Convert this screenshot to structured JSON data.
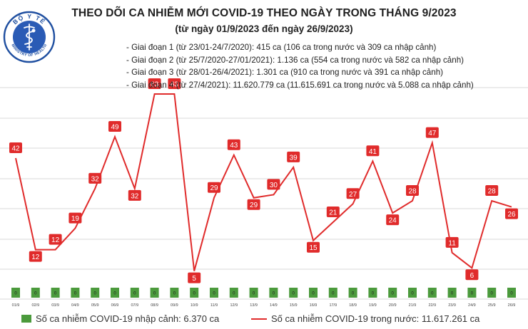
{
  "logo": {
    "top_text": "BỘ Y TẾ",
    "bottom_text": "MINISTRY OF HEALTH",
    "icon": "caduceus-icon"
  },
  "title": "THEO DÕI CA NHIỄM MỚI COVID-19 THEO NGÀY TRONG THÁNG 9/2023",
  "subtitle": "(từ ngày 01/9/2023 đến ngày 26/9/2023)",
  "phases": [
    "- Giai đoạn 1 (từ 23/01-24/7/2020): 415 ca (106 ca trong nước và 309 ca nhập cảnh)",
    "- Giai đoạn 2 (từ 25/7/2020-27/01/2021): 1.136 ca (554 ca trong nước và 582 ca nhập cảnh)",
    "- Giai đoạn 3 (từ 28/01-26/4/2021): 1.301 ca (910 ca trong nước và 391 ca nhập cảnh)",
    "- Giai đoạn 4 (từ 27/4/2021): 11.620.779 ca (11.615.691 ca trong nước và 5.088 ca nhập cảnh)"
  ],
  "legend": {
    "imported": "Số ca nhiễm COVID-19 nhập cảnh: 6.370 ca",
    "domestic": "Số ca nhiễm COVID-19 trong nước: 11.617.261 ca"
  },
  "colors": {
    "domestic_line": "#e02b2b",
    "imported_bar": "#4b9a3c",
    "grid": "#d9d9d9"
  },
  "chart_data": {
    "type": "line",
    "categories": [
      "01/9",
      "02/9",
      "03/9",
      "04/9",
      "05/9",
      "06/9",
      "07/9",
      "08/9",
      "09/9",
      "10/9",
      "11/9",
      "12/9",
      "13/9",
      "14/9",
      "15/9",
      "16/9",
      "17/9",
      "18/9",
      "19/9",
      "20/9",
      "21/9",
      "22/9",
      "23/9",
      "24/9",
      "25/9",
      "26/9"
    ],
    "series": [
      {
        "name": "Số ca nhiễm COVID-19 trong nước",
        "type": "line",
        "values": [
          42,
          12,
          12,
          19,
          32,
          49,
          32,
          63,
          63,
          5,
          29,
          43,
          29,
          30,
          39,
          15,
          21,
          27,
          41,
          24,
          28,
          47,
          11,
          6,
          28,
          26
        ]
      },
      {
        "name": "Số ca nhiễm COVID-19 nhập cảnh",
        "type": "bar",
        "values": [
          0,
          0,
          0,
          0,
          0,
          0,
          0,
          0,
          0,
          0,
          0,
          0,
          0,
          0,
          0,
          0,
          0,
          0,
          0,
          0,
          0,
          0,
          0,
          0,
          0,
          0
        ]
      }
    ],
    "ylim": [
      0,
      70
    ],
    "grid": true,
    "legend_position": "bottom"
  }
}
